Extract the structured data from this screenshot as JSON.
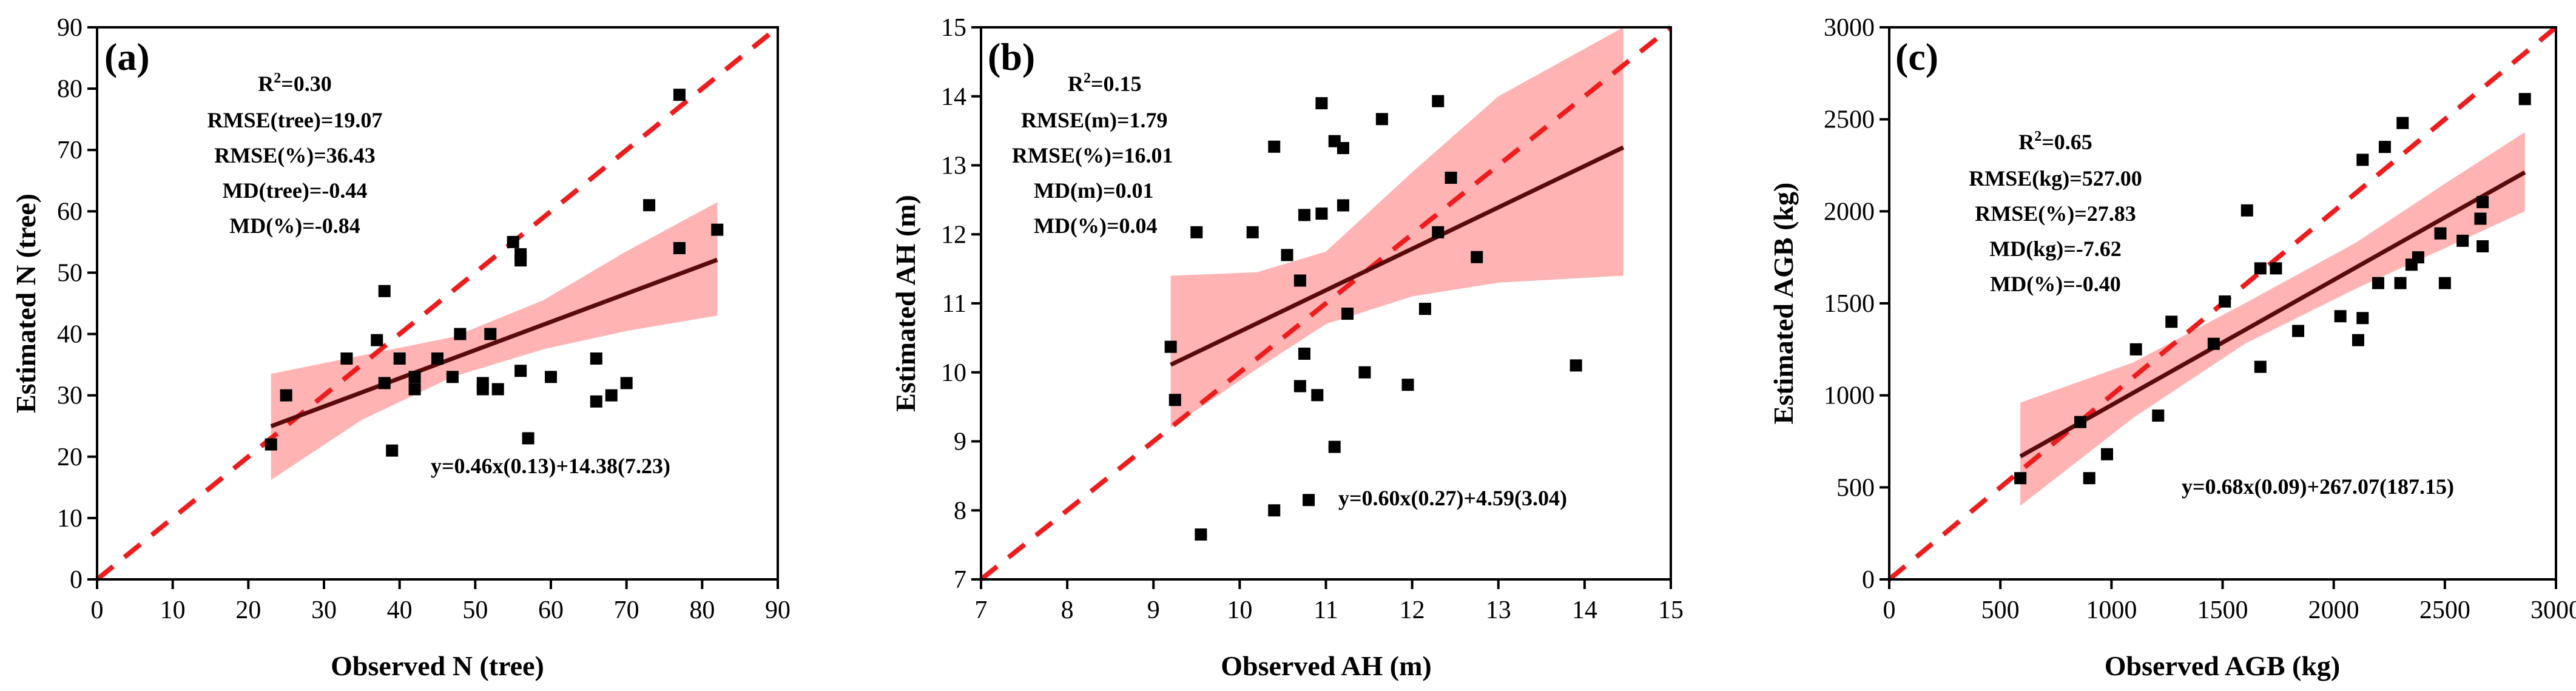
{
  "chart_data": [
    {
      "type": "scatter",
      "panel_label": "(a)",
      "xlabel": "Observed N (tree)",
      "ylabel": "Estimated N (tree)",
      "xlim": [
        0,
        90
      ],
      "ylim": [
        0,
        90
      ],
      "xticks": [
        0,
        10,
        20,
        30,
        40,
        50,
        60,
        70,
        80,
        90
      ],
      "yticks": [
        0,
        10,
        20,
        30,
        40,
        50,
        60,
        70,
        80,
        90
      ],
      "stats": {
        "r2_prefix": "R",
        "r2_sup": "2",
        "r2_value": "=0.30",
        "lines": [
          "RMSE(tree)=19.07",
          "RMSE(%)=36.43",
          "MD(tree)=-0.44",
          "MD(%)=-0.84"
        ]
      },
      "equation": "y=0.46x(0.13)+14.38(7.23)",
      "fit": {
        "slope": 0.46,
        "intercept": 14.38,
        "x_range": [
          23,
          82
        ]
      },
      "confidence_band": [
        {
          "x": 23,
          "lower": 16.2,
          "upper": 33.5
        },
        {
          "x": 35,
          "lower": 26.0,
          "upper": 36.5
        },
        {
          "x": 47,
          "lower": 33.0,
          "upper": 39.5
        },
        {
          "x": 59,
          "lower": 37.5,
          "upper": 45.5
        },
        {
          "x": 70,
          "lower": 40.5,
          "upper": 53.5
        },
        {
          "x": 82,
          "lower": 43.0,
          "upper": 61.5
        }
      ],
      "points": [
        {
          "x": 23,
          "y": 22
        },
        {
          "x": 25,
          "y": 30
        },
        {
          "x": 33,
          "y": 36
        },
        {
          "x": 37,
          "y": 39
        },
        {
          "x": 38,
          "y": 47
        },
        {
          "x": 38,
          "y": 32
        },
        {
          "x": 39,
          "y": 21
        },
        {
          "x": 40,
          "y": 36
        },
        {
          "x": 42,
          "y": 31
        },
        {
          "x": 42,
          "y": 33
        },
        {
          "x": 45,
          "y": 36
        },
        {
          "x": 47,
          "y": 33
        },
        {
          "x": 48,
          "y": 40
        },
        {
          "x": 51,
          "y": 31
        },
        {
          "x": 51,
          "y": 32
        },
        {
          "x": 52,
          "y": 40
        },
        {
          "x": 53,
          "y": 31
        },
        {
          "x": 55,
          "y": 55
        },
        {
          "x": 56,
          "y": 53
        },
        {
          "x": 56,
          "y": 52
        },
        {
          "x": 56,
          "y": 34
        },
        {
          "x": 57,
          "y": 23
        },
        {
          "x": 60,
          "y": 33
        },
        {
          "x": 66,
          "y": 29
        },
        {
          "x": 66,
          "y": 36
        },
        {
          "x": 68,
          "y": 30
        },
        {
          "x": 70,
          "y": 32
        },
        {
          "x": 73,
          "y": 61
        },
        {
          "x": 77,
          "y": 79
        },
        {
          "x": 77,
          "y": 54
        },
        {
          "x": 82,
          "y": 57
        }
      ]
    },
    {
      "type": "scatter",
      "panel_label": "(b)",
      "xlabel": "Observed AH (m)",
      "ylabel": "Estimated AH (m)",
      "xlim": [
        7,
        15
      ],
      "ylim": [
        7,
        15
      ],
      "xticks": [
        7,
        8,
        9,
        10,
        11,
        12,
        13,
        14,
        15
      ],
      "yticks": [
        7,
        8,
        9,
        10,
        11,
        12,
        13,
        14,
        15
      ],
      "stats": {
        "r2_prefix": "R",
        "r2_sup": "2",
        "r2_value": "=0.15",
        "lines": [
          "RMSE(m)=1.79",
          "RMSE(%)=16.01",
          "MD(m)=0.01",
          "MD(%)=0.04"
        ]
      },
      "equation": "y=0.60x(0.27)+4.59(3.04)",
      "fit": {
        "slope": 0.6,
        "intercept": 4.59,
        "x_range": [
          9.2,
          14.45
        ]
      },
      "confidence_band": [
        {
          "x": 9.2,
          "lower": 9.2,
          "upper": 11.4
        },
        {
          "x": 10.2,
          "lower": 10.05,
          "upper": 11.45
        },
        {
          "x": 11.0,
          "lower": 10.7,
          "upper": 11.75
        },
        {
          "x": 12.0,
          "lower": 11.1,
          "upper": 12.9
        },
        {
          "x": 13.0,
          "lower": 11.3,
          "upper": 14.0
        },
        {
          "x": 14.45,
          "lower": 11.4,
          "upper": 15.0
        }
      ],
      "points": [
        {
          "x": 9.2,
          "y": 10.37
        },
        {
          "x": 9.25,
          "y": 9.6
        },
        {
          "x": 9.5,
          "y": 12.03
        },
        {
          "x": 9.55,
          "y": 7.65
        },
        {
          "x": 10.15,
          "y": 12.03
        },
        {
          "x": 10.4,
          "y": 13.27
        },
        {
          "x": 10.4,
          "y": 8.0
        },
        {
          "x": 10.55,
          "y": 11.7
        },
        {
          "x": 10.7,
          "y": 11.33
        },
        {
          "x": 10.7,
          "y": 9.8
        },
        {
          "x": 10.75,
          "y": 12.28
        },
        {
          "x": 10.75,
          "y": 10.27
        },
        {
          "x": 10.8,
          "y": 8.15
        },
        {
          "x": 10.9,
          "y": 9.67
        },
        {
          "x": 10.95,
          "y": 13.9
        },
        {
          "x": 10.95,
          "y": 12.3
        },
        {
          "x": 11.1,
          "y": 13.35
        },
        {
          "x": 11.1,
          "y": 8.92
        },
        {
          "x": 11.2,
          "y": 13.25
        },
        {
          "x": 11.2,
          "y": 12.42
        },
        {
          "x": 11.25,
          "y": 10.85
        },
        {
          "x": 11.45,
          "y": 10.0
        },
        {
          "x": 11.65,
          "y": 13.67
        },
        {
          "x": 11.95,
          "y": 9.82
        },
        {
          "x": 12.15,
          "y": 10.92
        },
        {
          "x": 12.3,
          "y": 13.93
        },
        {
          "x": 12.3,
          "y": 12.03
        },
        {
          "x": 12.45,
          "y": 12.82
        },
        {
          "x": 12.75,
          "y": 11.67
        },
        {
          "x": 13.9,
          "y": 10.1
        }
      ]
    },
    {
      "type": "scatter",
      "panel_label": "(c)",
      "xlabel": "Observed AGB (kg)",
      "ylabel": "Estimated AGB (kg)",
      "xlim": [
        0,
        3000
      ],
      "ylim": [
        0,
        3000
      ],
      "xticks": [
        0,
        500,
        1000,
        1500,
        2000,
        2500,
        3000
      ],
      "yticks": [
        0,
        500,
        1000,
        1500,
        2000,
        2500,
        3000
      ],
      "stats": {
        "r2_prefix": "R",
        "r2_sup": "2",
        "r2_value": "=0.65",
        "lines": [
          "RMSE(kg)=527.00",
          "RMSE(%)=27.83",
          "MD(kg)=-7.62",
          "MD(%)=-0.40"
        ]
      },
      "equation": "y=0.68x(0.09)+267.07(187.15)",
      "fit": {
        "slope": 0.68,
        "intercept": 267.07,
        "x_range": [
          590,
          2860
        ]
      },
      "confidence_band": [
        {
          "x": 590,
          "lower": 400,
          "upper": 960
        },
        {
          "x": 1100,
          "lower": 880,
          "upper": 1180
        },
        {
          "x": 1600,
          "lower": 1280,
          "upper": 1500
        },
        {
          "x": 2100,
          "lower": 1580,
          "upper": 1830
        },
        {
          "x": 2500,
          "lower": 1800,
          "upper": 2150
        },
        {
          "x": 2860,
          "lower": 2000,
          "upper": 2430
        }
      ],
      "points": [
        {
          "x": 590,
          "y": 550
        },
        {
          "x": 860,
          "y": 855
        },
        {
          "x": 900,
          "y": 550
        },
        {
          "x": 980,
          "y": 680
        },
        {
          "x": 1110,
          "y": 1250
        },
        {
          "x": 1210,
          "y": 890
        },
        {
          "x": 1270,
          "y": 1400
        },
        {
          "x": 1460,
          "y": 1280
        },
        {
          "x": 1510,
          "y": 1510
        },
        {
          "x": 1610,
          "y": 2005
        },
        {
          "x": 1670,
          "y": 1690
        },
        {
          "x": 1670,
          "y": 1155
        },
        {
          "x": 1740,
          "y": 1690
        },
        {
          "x": 1840,
          "y": 1350
        },
        {
          "x": 2030,
          "y": 1430
        },
        {
          "x": 2110,
          "y": 1300
        },
        {
          "x": 2130,
          "y": 2280
        },
        {
          "x": 2130,
          "y": 1420
        },
        {
          "x": 2200,
          "y": 1610
        },
        {
          "x": 2230,
          "y": 2350
        },
        {
          "x": 2300,
          "y": 1610
        },
        {
          "x": 2310,
          "y": 2480
        },
        {
          "x": 2350,
          "y": 1710
        },
        {
          "x": 2380,
          "y": 1750
        },
        {
          "x": 2480,
          "y": 1880
        },
        {
          "x": 2500,
          "y": 1610
        },
        {
          "x": 2580,
          "y": 1840
        },
        {
          "x": 2660,
          "y": 1960
        },
        {
          "x": 2670,
          "y": 1810
        },
        {
          "x": 2670,
          "y": 2050
        },
        {
          "x": 2860,
          "y": 2610
        }
      ]
    }
  ]
}
